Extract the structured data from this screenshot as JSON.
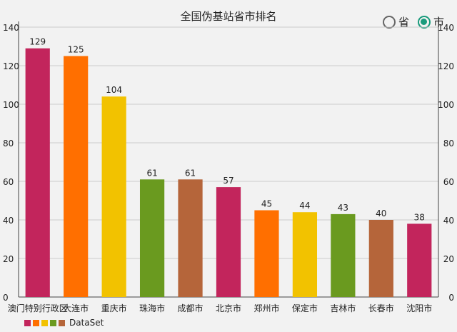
{
  "title": "全国伪基站省市排名",
  "toggle": {
    "option_province": "省",
    "option_city": "市",
    "selected": "市"
  },
  "legend": {
    "label": "DataSet"
  },
  "colors": [
    "#c2255c",
    "#ff6f00",
    "#f2c200",
    "#6a9a1f",
    "#b5653a"
  ],
  "chart_data": {
    "type": "bar",
    "title": "全国伪基站省市排名",
    "categories": [
      "澳门特别行政区",
      "大连市",
      "重庆市",
      "珠海市",
      "成都市",
      "北京市",
      "郑州市",
      "保定市",
      "吉林市",
      "长春市",
      "沈阳市"
    ],
    "series": [
      {
        "name": "DataSet",
        "values": [
          129,
          125,
          104,
          61,
          61,
          57,
          45,
          44,
          43,
          40,
          38
        ]
      }
    ],
    "ylim": [
      0,
      140
    ],
    "yticks": [
      0,
      20,
      40,
      60,
      80,
      100,
      120,
      140
    ],
    "grid": true,
    "legend_position": "bottom-left",
    "axes": "left-and-right"
  }
}
